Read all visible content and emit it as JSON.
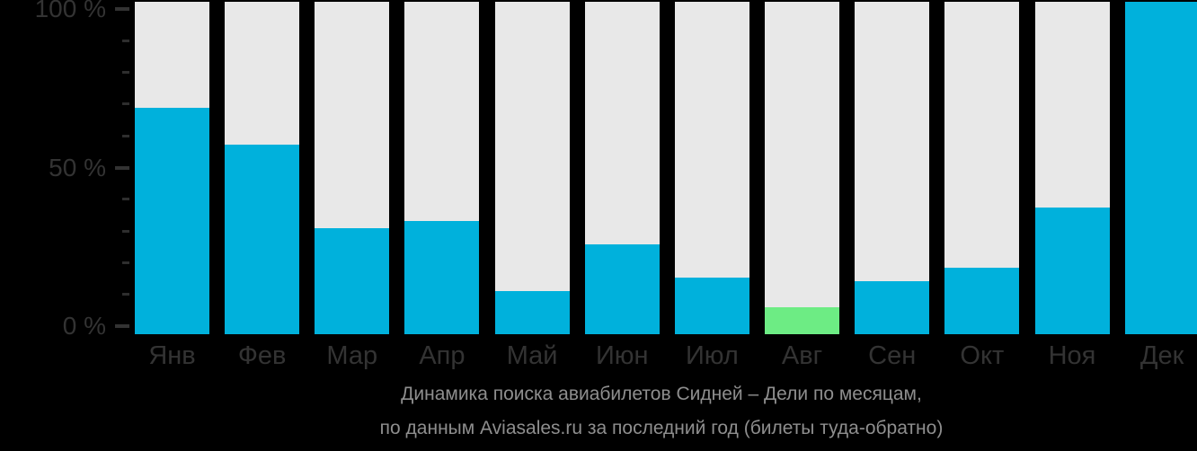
{
  "chart_data": {
    "type": "bar",
    "title": "Динамика поиска авиабилетов Сидней – Дели по месяцам,",
    "subtitle": "по данным Aviasales.ru за последний год (билеты туда-обратно)",
    "categories": [
      "Янв",
      "Фев",
      "Мар",
      "Апр",
      "Май",
      "Июн",
      "Июл",
      "Авг",
      "Сен",
      "Окт",
      "Ноя",
      "Дек"
    ],
    "values": [
      68,
      57,
      32,
      34,
      13,
      27,
      17,
      8,
      16,
      20,
      38,
      100
    ],
    "unit": "%",
    "highlight_index": 7,
    "highlight_category": "Авг",
    "ylim": [
      0,
      100
    ],
    "y_minor_step": 10,
    "y_major_ticks": [
      {
        "value": 100,
        "label": "100 %"
      },
      {
        "value": 50,
        "label": "50 %"
      },
      {
        "value": 0,
        "label": "0 %"
      }
    ],
    "grid": false,
    "legend": null,
    "colors": {
      "bar": "#00b1dc",
      "bar_highlight": "#6dec84",
      "bar_track": "#e8e8e8",
      "background": "#000000",
      "axis_label": "#333333",
      "tick_major": "#333333",
      "tick_minor": "#2e2e2e",
      "caption": "#8e8e8e"
    }
  }
}
